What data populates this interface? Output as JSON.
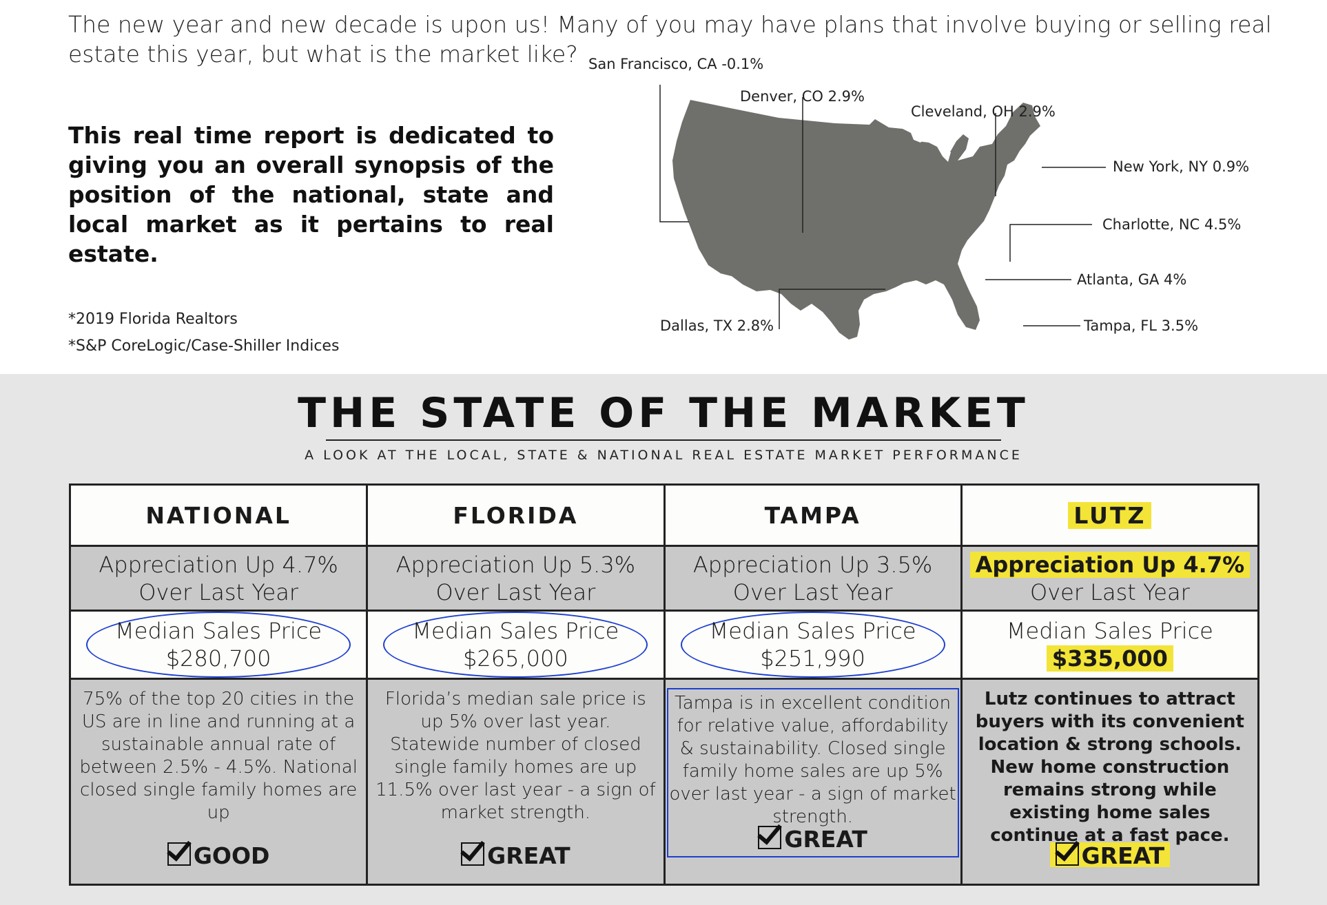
{
  "intro": "The new year and new decade is upon us! Many of you may have plans that involve buying or selling real estate this year, but what is the market like?",
  "lead": "This real time report is dedicated to giving you an overall synopsis of the position of the national, state and local market as it pertains to real estate.",
  "sources": [
    "*2019 Florida Realtors",
    "*S&P CoreLogic/Case-Shiller Indices"
  ],
  "map": {
    "fill_color": "#6f6f6b",
    "labels": {
      "sf": "San Francisco, CA -0.1%",
      "denver": "Denver, CO 2.9%",
      "cleveland": "Cleveland, OH 2.9%",
      "ny": "New York, NY 0.9%",
      "charlotte": "Charlotte, NC 4.5%",
      "atlanta": "Atlanta, GA 4%",
      "tampa": "Tampa, FL 3.5%",
      "dallas": "Dallas, TX 2.8%"
    }
  },
  "section": {
    "title": "THE STATE OF THE MARKET",
    "subtitle": "A LOOK AT THE LOCAL, STATE & NATIONAL REAL ESTATE MARKET PERFORMANCE"
  },
  "columns": [
    {
      "header": "NATIONAL",
      "appreciation": "Appreciation Up 4.7%",
      "appreciation_sub": "Over Last Year",
      "median_label": "Median Sales Price",
      "median_value": "$280,700",
      "description": "75% of the top 20 cities in the US are in line and running at a sustainable annual rate of between 2.5% - 4.5%. National closed single family homes are up",
      "verdict": "GOOD"
    },
    {
      "header": "FLORIDA",
      "appreciation": "Appreciation Up 5.3%",
      "appreciation_sub": "Over Last Year",
      "median_label": "Median Sales Price",
      "median_value": "$265,000",
      "description": "Florida’s median sale price is up 5% over last year.  Statewide number of closed single family homes are up 11.5% over last year - a sign of market strength.",
      "verdict": "GREAT"
    },
    {
      "header": "TAMPA",
      "appreciation": "Appreciation Up 3.5%",
      "appreciation_sub": "Over Last Year",
      "median_label": "Median Sales Price",
      "median_value": "$251,990",
      "description": "Tampa is in excellent condition for relative value, affordability & sustainability. Closed single family home sales are up 5% over last year - a sign of market strength.",
      "verdict": "GREAT"
    },
    {
      "header": "LUTZ",
      "appreciation": "Appreciation Up 4.7%",
      "appreciation_sub": "Over Last Year",
      "median_label": "Median Sales Price",
      "median_value": "$335,000",
      "description": "Lutz continues to attract buyers with its convenient location & strong schools.  New home construction remains strong while existing home sales continue at a fast pace.",
      "verdict": "GREAT"
    }
  ],
  "colors": {
    "highlight": "#f3e438",
    "annotation": "#1d3fd1",
    "panel": "#e6e6e6",
    "cell_gray": "#c9c9c9"
  }
}
